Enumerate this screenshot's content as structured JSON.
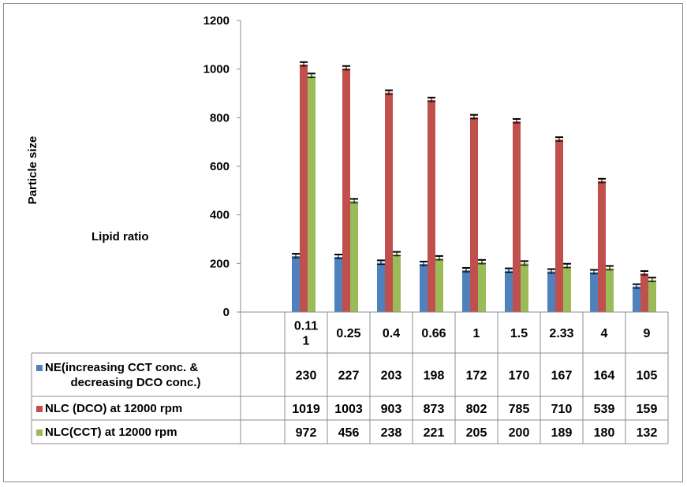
{
  "chart_data": {
    "type": "bar",
    "ylabel": "Particle size",
    "xlabel": "Lipid ratio",
    "ylim": [
      0,
      1200
    ],
    "yticks": [
      "0",
      "200",
      "400",
      "600",
      "800",
      "1000",
      "1200"
    ],
    "categories": [
      [
        "0.11",
        "1"
      ],
      [
        "0.25"
      ],
      [
        "0.4"
      ],
      [
        "0.66"
      ],
      [
        "1"
      ],
      [
        "1.5"
      ],
      [
        "2.33"
      ],
      [
        "4"
      ],
      [
        "9"
      ]
    ],
    "series": [
      {
        "name_lines": [
          "NE(increasing CCT conc. &",
          "decreasing DCO conc.)"
        ],
        "color": "#4F81BD",
        "values": [
          230,
          227,
          203,
          198,
          172,
          170,
          167,
          164,
          105
        ]
      },
      {
        "name_lines": [
          "NLC (DCO) at 12000 rpm"
        ],
        "color": "#C0504D",
        "values": [
          1019,
          1003,
          903,
          873,
          802,
          785,
          710,
          539,
          159
        ]
      },
      {
        "name_lines": [
          "NLC(CCT) at 12000 rpm"
        ],
        "color": "#9BBB59",
        "values": [
          972,
          456,
          238,
          221,
          205,
          200,
          189,
          180,
          132
        ]
      }
    ],
    "grid": false,
    "legend": "data-table"
  }
}
